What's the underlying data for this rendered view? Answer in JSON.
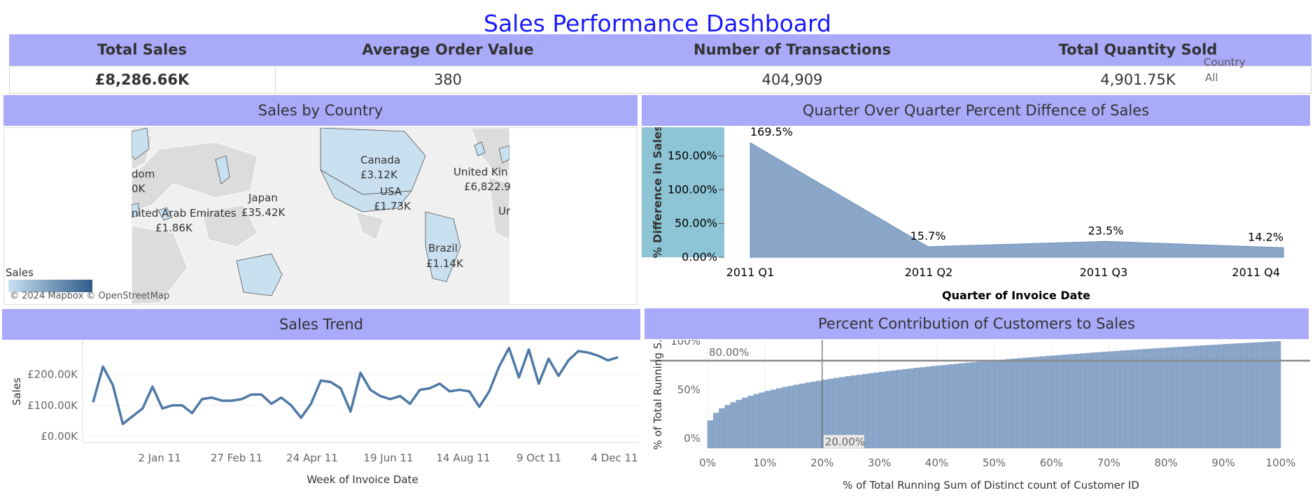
{
  "title": "Sales Performance Dashboard",
  "kpis": {
    "total_sales": {
      "label": "Total Sales",
      "value": "£8,286.66K"
    },
    "avg_order_value": {
      "label": "Average Order Value",
      "value": "380"
    },
    "transactions": {
      "label": "Number of Transactions",
      "value": "404,909"
    },
    "quantity": {
      "label": "Total Quantity Sold",
      "value": "4,901.75K"
    }
  },
  "filter": {
    "label": "Country",
    "value": "All"
  },
  "map_panel": {
    "title": "Sales by Country",
    "legend_title": "Sales",
    "attribution": "© 2024 Mapbox © OpenStreetMap",
    "labels": {
      "uk_left_name": "dom",
      "uk_left_value": "0K",
      "uae_name": "nited Arab Emirates",
      "uae_value": "£1.86K",
      "japan_name": "Japan",
      "japan_value": "£35.42K",
      "canada_name": "Canada",
      "canada_value": "£3.12K",
      "usa_name": "USA",
      "usa_value": "£1.73K",
      "brazil_name": "Brazil",
      "brazil_value": "£1.14K",
      "uk_right_name": "United Kin",
      "uk_right_value": "£6,822.9",
      "ur_name": "Ur"
    },
    "colors": {
      "low": "#c9e0f0",
      "high": "#2e5b8a",
      "land": "#dcdcdc"
    }
  },
  "qoq_panel": {
    "title": "Quarter Over Quarter Percent Diffence of Sales",
    "chart_data": {
      "type": "area",
      "categories": [
        "2011 Q1",
        "2011 Q2",
        "2011 Q3",
        "2011 Q4"
      ],
      "values": [
        169.5,
        15.7,
        23.5,
        14.2
      ],
      "data_labels": [
        "169.5%",
        "15.7%",
        "23.5%",
        "14.2%"
      ],
      "yticks": [
        "0.00%",
        "50.00%",
        "100.00%",
        "150.00%"
      ],
      "ytick_values": [
        0,
        50,
        100,
        150
      ],
      "ylim": [
        0,
        180
      ],
      "xlabel": "Quarter of Invoice Date",
      "ylabel": "% Difference in Sales",
      "color": "#8aa6c8"
    }
  },
  "trend_panel": {
    "title": "Sales Trend",
    "chart_data": {
      "type": "line",
      "xlabel": "Week of Invoice Date",
      "ylabel": "Sales",
      "xticks": [
        "2 Jan 11",
        "27 Feb 11",
        "24 Apr 11",
        "19 Jun 11",
        "14 Aug 11",
        "9 Oct 11",
        "4 Dec 11"
      ],
      "yticks": [
        "£0.00K",
        "£100.00K",
        "£200.00K"
      ],
      "ytick_values": [
        0,
        100,
        200
      ],
      "ylim": [
        -20,
        300
      ],
      "values": [
        110,
        225,
        165,
        40,
        65,
        90,
        160,
        90,
        100,
        100,
        75,
        120,
        125,
        115,
        115,
        120,
        135,
        135,
        105,
        125,
        100,
        60,
        105,
        180,
        175,
        155,
        80,
        205,
        150,
        130,
        120,
        130,
        105,
        150,
        155,
        170,
        145,
        150,
        145,
        95,
        145,
        225,
        285,
        190,
        280,
        170,
        250,
        195,
        245,
        275,
        270,
        260,
        245,
        255
      ],
      "color": "#4e79a7"
    }
  },
  "pareto_panel": {
    "title": "Percent Contribution of Customers to Sales",
    "chart_data": {
      "type": "bar",
      "xlabel": "% of Total Running Sum of Distinct count of Customer ID",
      "ylabel": "% of Total Running S..",
      "xticks": [
        "0%",
        "10%",
        "20%",
        "30%",
        "40%",
        "50%",
        "60%",
        "70%",
        "80%",
        "90%",
        "100%"
      ],
      "yticks": [
        "0%",
        "50%",
        "100%"
      ],
      "ytick_values": [
        0,
        50,
        100
      ],
      "ylim": [
        -10,
        100
      ],
      "reference_x_label": "20.00%",
      "reference_y_label": "80.00%",
      "reference_x": 20,
      "reference_y": 80,
      "color": "#8aa6c8"
    }
  }
}
